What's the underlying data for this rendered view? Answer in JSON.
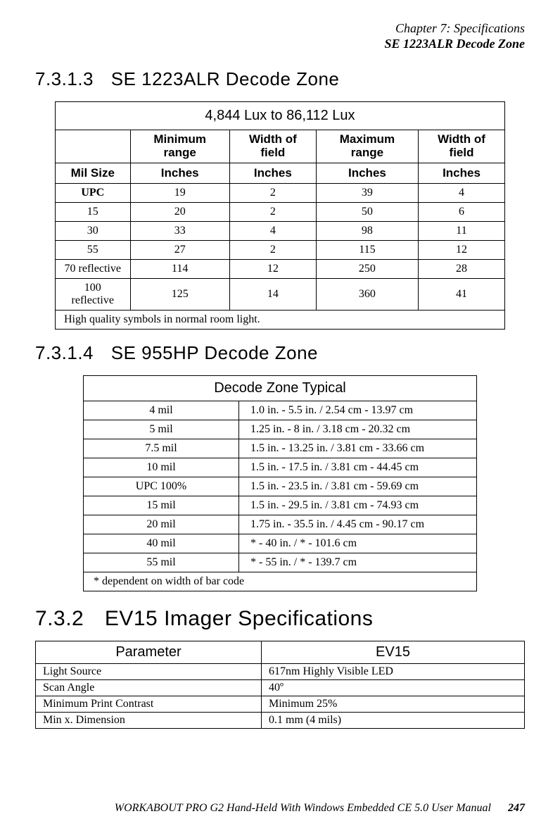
{
  "chapter": {
    "line1": "Chapter 7: Specifications",
    "line2": "SE 1223ALR Decode Zone"
  },
  "sections": {
    "s1": {
      "num": "7.3.1.3",
      "title": "SE 1223ALR Decode Zone"
    },
    "s2": {
      "num": "7.3.1.4",
      "title": "SE 955HP Decode Zone"
    },
    "s3": {
      "num": "7.3.2",
      "title": "EV15 Imager Specifications"
    }
  },
  "table1": {
    "caption": "4,844 Lux to 86,112 Lux",
    "headers": {
      "blank": "",
      "c1": "Minimum range",
      "c2": "Width of field",
      "c3": "Maximum range",
      "c4": "Width of field"
    },
    "units": {
      "c0": "Mil Size",
      "c1": "Inches",
      "c2": "Inches",
      "c3": "Inches",
      "c4": "Inches"
    },
    "rows": [
      {
        "c0": "UPC",
        "c1": "19",
        "c2": "2",
        "c3": "39",
        "c4": "4",
        "label_bold": true
      },
      {
        "c0": "15",
        "c1": "20",
        "c2": "2",
        "c3": "50",
        "c4": "6"
      },
      {
        "c0": "30",
        "c1": "33",
        "c2": "4",
        "c3": "98",
        "c4": "11"
      },
      {
        "c0": "55",
        "c1": "27",
        "c2": "2",
        "c3": "115",
        "c4": "12"
      },
      {
        "c0": "70 reflective",
        "c1": "114",
        "c2": "12",
        "c3": "250",
        "c4": "28"
      },
      {
        "c0": "100 reflective",
        "c1": "125",
        "c2": "14",
        "c3": "360",
        "c4": "41"
      }
    ],
    "note": "High quality symbols in normal room light."
  },
  "table2": {
    "caption": "Decode Zone Typical",
    "rows": [
      {
        "c0": "4 mil",
        "c1": "1.0 in. - 5.5 in. / 2.54 cm - 13.97 cm"
      },
      {
        "c0": "5 mil",
        "c1": "1.25 in. - 8 in. / 3.18 cm - 20.32 cm"
      },
      {
        "c0": "7.5 mil",
        "c1": "1.5 in. - 13.25 in. / 3.81 cm - 33.66 cm"
      },
      {
        "c0": "10 mil",
        "c1": "1.5 in. - 17.5 in. / 3.81 cm - 44.45 cm"
      },
      {
        "c0": "UPC 100%",
        "c1": "1.5 in. - 23.5 in. / 3.81 cm - 59.69 cm"
      },
      {
        "c0": "15 mil",
        "c1": "1.5 in. - 29.5 in. / 3.81 cm - 74.93 cm"
      },
      {
        "c0": "20 mil",
        "c1": "1.75 in. - 35.5 in. / 4.45 cm - 90.17 cm"
      },
      {
        "c0": "40 mil",
        "c1": "* - 40 in. / * - 101.6 cm"
      },
      {
        "c0": "55 mil",
        "c1": "* - 55 in. / * - 139.7 cm"
      }
    ],
    "note": "* dependent on width of bar code"
  },
  "table3": {
    "headers": {
      "c0": "Parameter",
      "c1": "EV15"
    },
    "rows": [
      {
        "c0": "Light Source",
        "c1": "617nm Highly Visible LED"
      },
      {
        "c0": "Scan Angle",
        "c1": "40º"
      },
      {
        "c0": "Minimum Print Contrast",
        "c1": "Minimum 25%"
      },
      {
        "c0": "Min x. Dimension",
        "c1": "0.1 mm (4 mils)"
      }
    ]
  },
  "footer": {
    "text": "WORKABOUT PRO G2 Hand-Held With Windows Embedded CE 5.0 User Manual",
    "page": "247"
  }
}
